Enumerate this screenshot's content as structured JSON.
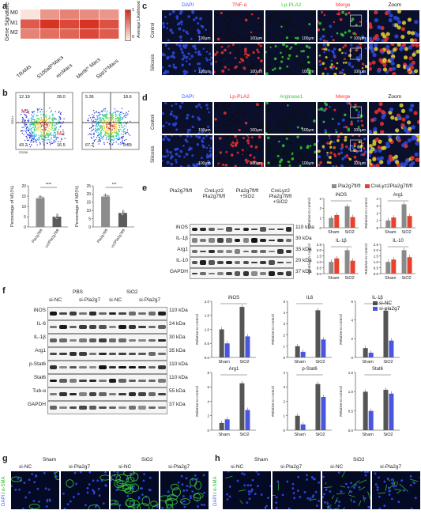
{
  "panels": {
    "a": "a",
    "b": "b",
    "c": "c",
    "d": "d",
    "e": "e",
    "f": "f",
    "g": "g",
    "h": "h"
  },
  "panel_a": {
    "y_title": "Gene Signature",
    "rows": [
      "M0",
      "M1",
      "M2"
    ],
    "cols": [
      "TRAMs",
      "S100a8hiMacs",
      "recMacs",
      "MertkhiMacs",
      "Spp1hiMacs"
    ],
    "cols_display": [
      "TRAMs",
      "S100a8ʰⁱMacs",
      "recMacs",
      "Mertkʰⁱ Macs",
      "Spp1ʰⁱMacs"
    ],
    "values": [
      [
        0.05,
        0.45,
        0.55,
        0.5,
        0.45
      ],
      [
        0.75,
        0.95,
        0.85,
        0.95,
        0.8
      ],
      [
        0.55,
        0.65,
        0.7,
        0.85,
        0.75
      ]
    ],
    "legend_title": "Average Likelihood",
    "legend_max": "1",
    "legend_min": "0",
    "colors": {
      "low": "#fbeee6",
      "high": "#d62a1a"
    }
  },
  "panel_b": {
    "flow": [
      {
        "q": [
          "12.19",
          "28.0",
          "43.2",
          "16.5"
        ]
      },
      {
        "q": [
          "5.36",
          "18.6",
          "67.2",
          "8.89"
        ]
      }
    ],
    "m1": "M1",
    "m2": "M2",
    "x_axis": "CD206",
    "y_axis": "CD11c",
    "bar1": {
      "ylabel": "Percentage of M1(%)",
      "sig": "****",
      "cats": [
        "Pla2g7fl/fl",
        "CreLyz2Pla2g7fl/fl"
      ],
      "values": [
        14,
        5
      ],
      "ymax": 20,
      "ticks": [
        "0",
        "5",
        "10",
        "15",
        "20"
      ]
    },
    "bar2": {
      "ylabel": "Percentage of M2(%)",
      "sig": "***",
      "cats": [
        "Pla2g7fl/fl",
        "CreLyz2Pla2g7fl/fl"
      ],
      "values": [
        18.5,
        8.5
      ],
      "ymax": 25,
      "ticks": [
        "0",
        "5",
        "10",
        "15",
        "20",
        "25"
      ]
    }
  },
  "panel_c": {
    "channels": [
      "DAPI",
      "TNF-α",
      "Lp-PLA2",
      "Merge",
      "Zoom"
    ],
    "channel_colors": [
      "#3a5dff",
      "#ff3030",
      "#2fd02f",
      "#ff3030",
      "#111"
    ],
    "rows": [
      "Control",
      "Silicosis"
    ],
    "scale": "100μm"
  },
  "panel_d": {
    "channels": [
      "DAPI",
      "Lp-PLA2",
      "Arginase1",
      "Merge",
      "Zoom"
    ],
    "channel_colors": [
      "#3a5dff",
      "#ff3030",
      "#2fd02f",
      "#ff3030",
      "#111"
    ],
    "rows": [
      "Control",
      "Silicosis"
    ],
    "scale": "100μm"
  },
  "panel_e": {
    "groups": [
      "Pla2g7fl/fl",
      "CreLyz2 Pla2g7fl/fl",
      "Pla2g7fl/fl +SiO2",
      "CreLyz2 Pla2g7fl/fl +SiO2"
    ],
    "bands": [
      "iNOS",
      "IL-1β",
      "Arg1",
      "IL-10",
      "GAPDH"
    ],
    "kda": [
      "110 kDa",
      "30 kDa",
      "35 kDa",
      "20 kDa",
      "37 kDa"
    ],
    "legend": [
      "Pla2g7fl/fl",
      "CreLyz2Pla2g7fl/fl"
    ],
    "colors": [
      "#8a8a8a",
      "#e8412c"
    ],
    "ylabel": "Relative to control",
    "xcats": [
      "Sham",
      "SiO2"
    ],
    "charts": [
      {
        "title": "iNOS",
        "ticks": [
          "0",
          "1",
          "2",
          "3"
        ],
        "ymax": 3,
        "values": [
          [
            1,
            1.3
          ],
          [
            2.2,
            1.1
          ]
        ]
      },
      {
        "title": "Arg1",
        "ticks": [
          "0",
          "1",
          "2",
          "3",
          "4"
        ],
        "ymax": 4,
        "values": [
          [
            1,
            1.4
          ],
          [
            3.2,
            1.6
          ]
        ]
      },
      {
        "title": "IL-1β",
        "ticks": [
          "0.0",
          "0.5",
          "1.0",
          "1.5",
          "2.0",
          "2.5"
        ],
        "ymax": 2.5,
        "values": [
          [
            1,
            1.3
          ],
          [
            2,
            1.1
          ]
        ]
      },
      {
        "title": "IL-10",
        "ticks": [
          "0.0",
          "0.5",
          "1.0",
          "1.5",
          "2.0",
          "2.5"
        ],
        "ymax": 2.5,
        "values": [
          [
            1,
            1.2
          ],
          [
            2,
            1.4
          ]
        ]
      }
    ]
  },
  "panel_f": {
    "top_groups": [
      "PBS",
      "SiO2"
    ],
    "lanes": [
      "si-NC",
      "si-Pla2g7",
      "si-NC",
      "si-Pla2g7"
    ],
    "bands": [
      "iNOS",
      "IL-6",
      "IL-1β",
      "Arg1",
      "p-Stat6",
      "Stat6",
      "Tub-α",
      "GAPDH"
    ],
    "kda": [
      "110 kDa",
      "24 kDa",
      "30 kDa",
      "35 kDa",
      "110 kDa",
      "110 kDa",
      "55 kDa",
      "37 kDa"
    ],
    "legend": [
      "si-NC",
      "si-pla2g7"
    ],
    "colors": [
      "#555555",
      "#4a56e0"
    ],
    "ylabel": "Relative to control",
    "xcats": [
      "Sham",
      "SiO2"
    ],
    "charts": [
      {
        "title": "iNOS",
        "ticks": [
          "0.0",
          "0.5",
          "1.0",
          "1.5",
          "2.0"
        ],
        "ymax": 2,
        "values": [
          [
            1,
            0.5
          ],
          [
            1.8,
            0.75
          ]
        ]
      },
      {
        "title": "IL6",
        "ticks": [
          "0",
          "1",
          "2",
          "3",
          "4",
          "5"
        ],
        "ymax": 5,
        "values": [
          [
            1,
            0.5
          ],
          [
            4.2,
            1.6
          ]
        ]
      },
      {
        "title": "IL-1β",
        "ticks": [
          "0",
          "2",
          "4",
          "6"
        ],
        "ymax": 6,
        "values": [
          [
            1,
            0.5
          ],
          [
            5,
            1.8
          ]
        ]
      },
      {
        "title": "Arg1",
        "ticks": [
          "0",
          "2",
          "4",
          "6",
          "8"
        ],
        "ymax": 8,
        "values": [
          [
            1,
            1.5
          ],
          [
            6.5,
            2.8
          ]
        ]
      },
      {
        "title": "p-Stat6",
        "ticks": [
          "0",
          "1",
          "2",
          "3",
          "4"
        ],
        "ymax": 4,
        "values": [
          [
            1,
            0.4
          ],
          [
            3.2,
            2.3
          ]
        ]
      },
      {
        "title": "Stat6",
        "ticks": [
          "0.0",
          "0.5",
          "1.0",
          "1.5"
        ],
        "ymax": 1.5,
        "values": [
          [
            1,
            0.5
          ],
          [
            1.05,
            0.95
          ]
        ]
      }
    ]
  },
  "panel_g": {
    "groups": [
      "Sham",
      "SiO2"
    ],
    "lanes": [
      "si-NC",
      "si-Pla2g7",
      "si-NC",
      "si-Pla2g7"
    ],
    "stain": [
      "DAPI",
      "α-SMA"
    ]
  },
  "panel_h": {
    "groups": [
      "Sham",
      "SiO2"
    ],
    "lanes": [
      "si-NC",
      "si-Pla2g7",
      "si-NC",
      "si-Pla2g7"
    ],
    "stain": [
      "DAPI",
      "α-SMA"
    ]
  }
}
